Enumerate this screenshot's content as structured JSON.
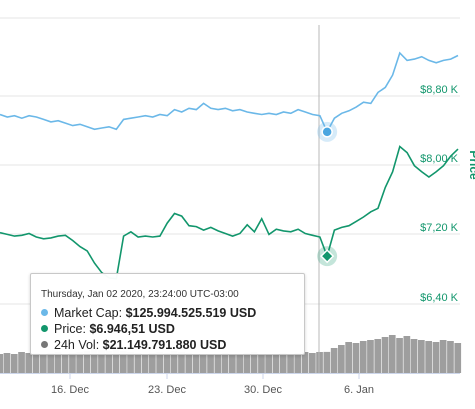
{
  "chart_data": {
    "type": "line",
    "x_ticks": [
      "16. Dec",
      "23. Dec",
      "30. Dec",
      "6. Jan"
    ],
    "y_ticks_price": [
      "$6,40 K",
      "$7,20 K",
      "$8,00 K",
      "$8,80 K"
    ],
    "y_axis_title": "Price",
    "series": [
      {
        "name": "Market Cap",
        "color": "#6bb8e8",
        "values": [
          127.4,
          127.2,
          127.3,
          127.1,
          127.3,
          127.2,
          127.0,
          126.8,
          126.9,
          126.7,
          126.5,
          126.6,
          126.4,
          126.2,
          126.3,
          126.4,
          126.2,
          127.0,
          127.1,
          127.2,
          127.3,
          127.2,
          127.4,
          127.3,
          127.8,
          127.6,
          127.9,
          127.8,
          128.3,
          127.9,
          127.8,
          127.9,
          127.7,
          127.8,
          127.6,
          127.5,
          127.4,
          127.5,
          127.4,
          127.6,
          127.5,
          127.8,
          127.6,
          127.4,
          127.3,
          125.99,
          127.1,
          127.5,
          127.7,
          128.0,
          128.4,
          128.3,
          129.2,
          129.6,
          130.6,
          132.4,
          131.8,
          131.9,
          132.1,
          131.8,
          131.6,
          131.8,
          131.9,
          132.2
        ]
      },
      {
        "name": "Price",
        "color": "#12966c",
        "values": [
          7.22,
          7.2,
          7.18,
          7.19,
          7.21,
          7.17,
          7.15,
          7.16,
          7.18,
          7.19,
          7.13,
          7.06,
          7.01,
          6.87,
          6.76,
          6.7,
          6.69,
          7.18,
          7.23,
          7.17,
          7.18,
          7.17,
          7.18,
          7.33,
          7.44,
          7.41,
          7.3,
          7.29,
          7.25,
          7.28,
          7.24,
          7.21,
          7.18,
          7.21,
          7.31,
          7.23,
          7.38,
          7.2,
          7.26,
          7.24,
          7.23,
          7.26,
          7.21,
          7.19,
          7.17,
          6.95,
          7.25,
          7.28,
          7.3,
          7.35,
          7.4,
          7.46,
          7.5,
          7.74,
          7.92,
          8.21,
          8.14,
          7.99,
          7.92,
          7.86,
          7.92,
          7.99,
          8.1,
          8.18
        ]
      },
      {
        "name": "24h Vol",
        "color": "#777777",
        "values": [
          19,
          20,
          19,
          21,
          20,
          20,
          19,
          20,
          21,
          19,
          20,
          21,
          22,
          24,
          23,
          22,
          23,
          22,
          21,
          20,
          19,
          20,
          21,
          20,
          22,
          21,
          20,
          19,
          18,
          18,
          19,
          20,
          19,
          18,
          20,
          21,
          19,
          18,
          19,
          20,
          19,
          20,
          21,
          20,
          21,
          21.15,
          25,
          28,
          31,
          30,
          32,
          33,
          34,
          36,
          38,
          35,
          37,
          34,
          33,
          32,
          31,
          33,
          32,
          30
        ]
      }
    ],
    "highlight_index": 45,
    "tooltip": {
      "date": "Thursday, Jan 02 2020, 23:24:00 UTC-03:00",
      "rows": [
        {
          "label": "Market Cap: ",
          "value": "$125.994.525.519 USD",
          "color": "#6bb8e8"
        },
        {
          "label": "Price: ",
          "value": "$6.946,51 USD",
          "color": "#12966c"
        },
        {
          "label": "24h Vol: ",
          "value": "$21.149.791.880 USD",
          "color": "#777777"
        }
      ]
    }
  }
}
